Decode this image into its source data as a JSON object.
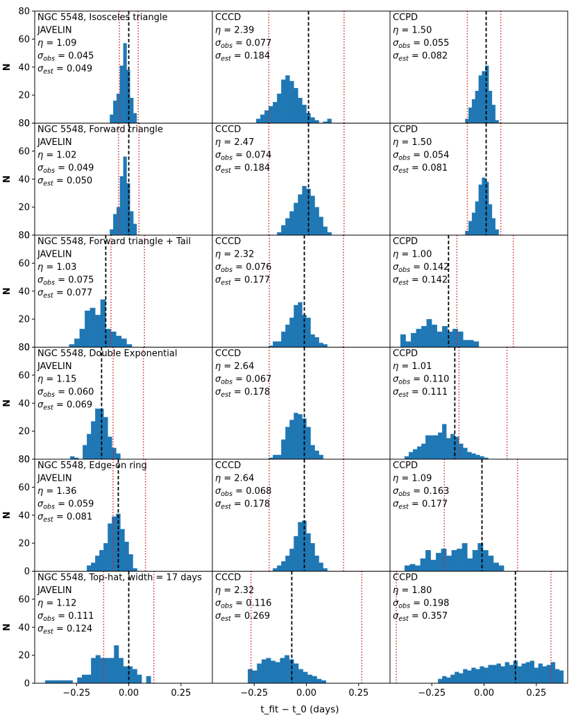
{
  "figure": {
    "xlabel": "t_fit − t_0 (days)",
    "ylabel": "N",
    "xlim": [
      -0.45,
      0.4
    ],
    "ylim": [
      0,
      80
    ],
    "xticks": [
      "−0.25",
      "0.00",
      "0.25"
    ],
    "xtick_values": [
      -0.25,
      0.0,
      0.25
    ],
    "yticks": [
      0,
      20,
      40,
      60,
      80
    ],
    "yticks_bottom_row": [
      0,
      20,
      40,
      60
    ],
    "colors": {
      "bar": "#1f77b4",
      "median": "#000000",
      "sigma": "#d62728"
    }
  },
  "chart_data": [
    {
      "type": "bar",
      "row": 0,
      "col": 0,
      "title": "NGC 5548, Isosceles triangle",
      "method": "JAVELIN",
      "eta": "1.09",
      "sigma_obs": "0.045",
      "sigma_est": "0.049",
      "median": 0.0,
      "sigma_lines": [
        -0.045,
        0.045
      ],
      "bin_start": -0.09,
      "bin_width": 0.016,
      "values": [
        6,
        16,
        21,
        41,
        57,
        38,
        18,
        7
      ]
    },
    {
      "type": "bar",
      "row": 0,
      "col": 1,
      "title": "",
      "method": "CCCD",
      "eta": "2.39",
      "sigma_obs": "0.077",
      "sigma_est": "0.184",
      "median": 0.01,
      "sigma_lines": [
        -0.18,
        0.18
      ],
      "bin_start": -0.24,
      "bin_width": 0.02,
      "values": [
        3,
        6,
        9,
        12,
        15,
        21,
        31,
        34,
        30,
        25,
        18,
        13,
        7,
        4,
        2,
        0,
        1,
        3
      ]
    },
    {
      "type": "bar",
      "row": 0,
      "col": 2,
      "title": "",
      "method": "CCPD",
      "eta": "1.50",
      "sigma_obs": "0.055",
      "sigma_est": "0.082",
      "median": 0.01,
      "sigma_lines": [
        -0.08,
        0.08
      ],
      "bin_start": -0.09,
      "bin_width": 0.016,
      "values": [
        3,
        11,
        17,
        23,
        34,
        37,
        41,
        23,
        13,
        2
      ]
    },
    {
      "type": "bar",
      "row": 1,
      "col": 0,
      "title": "NGC 5548, Forward triangle",
      "method": "JAVELIN",
      "eta": "1.02",
      "sigma_obs": "0.049",
      "sigma_est": "0.050",
      "median": 0.0,
      "sigma_lines": [
        -0.049,
        0.049
      ],
      "bin_start": -0.09,
      "bin_width": 0.016,
      "values": [
        4,
        15,
        20,
        42,
        56,
        37,
        17,
        8
      ]
    },
    {
      "type": "bar",
      "row": 1,
      "col": 1,
      "title": "",
      "method": "CCCD",
      "eta": "2.47",
      "sigma_obs": "0.074",
      "sigma_est": "0.184",
      "median": 0.01,
      "sigma_lines": [
        -0.18,
        0.18
      ],
      "bin_start": -0.14,
      "bin_width": 0.02,
      "values": [
        2,
        7,
        12,
        17,
        23,
        29,
        35,
        33,
        28,
        20,
        13,
        6,
        2
      ]
    },
    {
      "type": "bar",
      "row": 1,
      "col": 2,
      "title": "",
      "method": "CCPD",
      "eta": "1.50",
      "sigma_obs": "0.054",
      "sigma_est": "0.081",
      "median": 0.01,
      "sigma_lines": [
        -0.08,
        0.08
      ],
      "bin_start": -0.09,
      "bin_width": 0.016,
      "values": [
        3,
        10,
        16,
        24,
        36,
        41,
        38,
        22,
        12,
        4
      ]
    },
    {
      "type": "bar",
      "row": 2,
      "col": 0,
      "title": "NGC 5548, Forward triangle + Tail",
      "method": "JAVELIN",
      "eta": "1.03",
      "sigma_obs": "0.075",
      "sigma_est": "0.077",
      "median": -0.11,
      "sigma_lines": [
        -0.085,
        0.075
      ],
      "bin_start": -0.285,
      "bin_width": 0.025,
      "values": [
        2,
        6,
        13,
        26,
        28,
        23,
        34,
        13,
        11,
        8,
        6,
        2
      ]
    },
    {
      "type": "bar",
      "row": 2,
      "col": 1,
      "title": "",
      "method": "CCCD",
      "eta": "2.32",
      "sigma_obs": "0.076",
      "sigma_est": "0.177",
      "median": -0.01,
      "sigma_lines": [
        -0.177,
        0.177
      ],
      "bin_start": -0.18,
      "bin_width": 0.02,
      "values": [
        1,
        4,
        4,
        11,
        16,
        21,
        30,
        32,
        23,
        21,
        9,
        7,
        3,
        2
      ]
    },
    {
      "type": "bar",
      "row": 2,
      "col": 2,
      "title": "",
      "method": "CCPD",
      "eta": "1.00",
      "sigma_obs": "0.142",
      "sigma_est": "0.142",
      "median": -0.17,
      "sigma_lines": [
        -0.13,
        0.14
      ],
      "bin_start": -0.4,
      "bin_width": 0.025,
      "values": [
        9,
        4,
        10,
        13,
        15,
        20,
        16,
        11,
        15,
        11,
        13,
        11,
        5,
        5,
        4
      ]
    },
    {
      "type": "bar",
      "row": 3,
      "col": 0,
      "title": "NGC 5548, Double Exponential",
      "method": "JAVELIN",
      "eta": "1.15",
      "sigma_obs": "0.060",
      "sigma_est": "0.069",
      "median": -0.13,
      "sigma_lines": [
        -0.075,
        0.07
      ],
      "bin_start": -0.28,
      "bin_width": 0.02,
      "values": [
        2,
        1,
        0,
        10,
        18,
        27,
        36,
        36,
        30,
        16,
        8,
        4
      ]
    },
    {
      "type": "bar",
      "row": 3,
      "col": 1,
      "title": "",
      "method": "CCCD",
      "eta": "2.64",
      "sigma_obs": "0.067",
      "sigma_est": "0.178",
      "median": -0.01,
      "sigma_lines": [
        -0.178,
        0.178
      ],
      "bin_start": -0.18,
      "bin_width": 0.02,
      "values": [
        1,
        3,
        3,
        14,
        23,
        28,
        33,
        32,
        29,
        23,
        10,
        6,
        3
      ]
    },
    {
      "type": "bar",
      "row": 3,
      "col": 2,
      "title": "",
      "method": "CCPD",
      "eta": "1.01",
      "sigma_obs": "0.110",
      "sigma_est": "0.111",
      "median": -0.14,
      "sigma_lines": [
        -0.12,
        0.11
      ],
      "bin_start": -0.38,
      "bin_width": 0.02,
      "values": [
        2,
        5,
        7,
        9,
        11,
        17,
        17,
        17,
        19,
        25,
        15,
        18,
        16,
        11,
        8,
        5,
        4,
        3,
        2,
        1
      ]
    },
    {
      "type": "bar",
      "row": 4,
      "col": 0,
      "title": "NGC 5548, Edge-on ring",
      "method": "JAVELIN",
      "eta": "1.36",
      "sigma_obs": "0.059",
      "sigma_est": "0.081",
      "median": -0.05,
      "sigma_lines": [
        -0.075,
        0.08
      ],
      "bin_start": -0.2,
      "bin_width": 0.02,
      "values": [
        4,
        6,
        11,
        15,
        20,
        34,
        39,
        41,
        30,
        21,
        12,
        2
      ]
    },
    {
      "type": "bar",
      "row": 4,
      "col": 1,
      "title": "",
      "method": "CCCD",
      "eta": "2.64",
      "sigma_obs": "0.068",
      "sigma_est": "0.178",
      "median": -0.01,
      "sigma_lines": [
        -0.178,
        0.178
      ],
      "bin_start": -0.16,
      "bin_width": 0.02,
      "values": [
        2,
        4,
        7,
        11,
        16,
        25,
        35,
        36,
        27,
        20,
        11,
        6,
        2
      ]
    },
    {
      "type": "bar",
      "row": 4,
      "col": 2,
      "title": "",
      "method": "CCPD",
      "eta": "1.09",
      "sigma_obs": "0.163",
      "sigma_est": "0.177",
      "median": -0.01,
      "sigma_lines": [
        -0.19,
        0.16
      ],
      "bin_start": -0.38,
      "bin_width": 0.025,
      "values": [
        4,
        5,
        4,
        9,
        15,
        8,
        13,
        16,
        11,
        15,
        16,
        20,
        9,
        15,
        20,
        15,
        11,
        6,
        4
      ]
    },
    {
      "type": "bar",
      "row": 5,
      "col": 0,
      "title": "NGC 5548, Top-hat, width = 17 days",
      "method": "JAVELIN",
      "eta": "1.12",
      "sigma_obs": "0.111",
      "sigma_est": "0.124",
      "median": 0.0,
      "sigma_lines": [
        -0.12,
        0.12
      ],
      "bin_start": -0.4,
      "bin_width": 0.022,
      "values": [
        2,
        2,
        2,
        2,
        2,
        2,
        0,
        4,
        6,
        6,
        18,
        20,
        18,
        18,
        18,
        27,
        18,
        12,
        12,
        10,
        6,
        0,
        5
      ]
    },
    {
      "type": "bar",
      "row": 5,
      "col": 1,
      "title": "",
      "method": "CCCD",
      "eta": "2.32",
      "sigma_obs": "0.116",
      "sigma_est": "0.269",
      "median": -0.07,
      "sigma_lines": [
        -0.265,
        0.265
      ],
      "bin_start": -0.28,
      "bin_width": 0.022,
      "values": [
        10,
        9,
        14,
        17,
        18,
        16,
        15,
        18,
        20,
        17,
        14,
        10,
        8,
        6,
        5,
        3,
        2
      ]
    },
    {
      "type": "bar",
      "row": 5,
      "col": 2,
      "title": "",
      "method": "CCPD",
      "eta": "1.80",
      "sigma_obs": "0.198",
      "sigma_est": "0.357",
      "median": 0.15,
      "sigma_lines": [
        -0.42,
        0.32
      ],
      "bin_start": -0.22,
      "bin_width": 0.02,
      "values": [
        3,
        5,
        4,
        6,
        8,
        7,
        10,
        9,
        11,
        10,
        12,
        11,
        13,
        13,
        14,
        12,
        15,
        13,
        16,
        12,
        14,
        15,
        16,
        11,
        14,
        12,
        13,
        15,
        10,
        9
      ]
    }
  ]
}
